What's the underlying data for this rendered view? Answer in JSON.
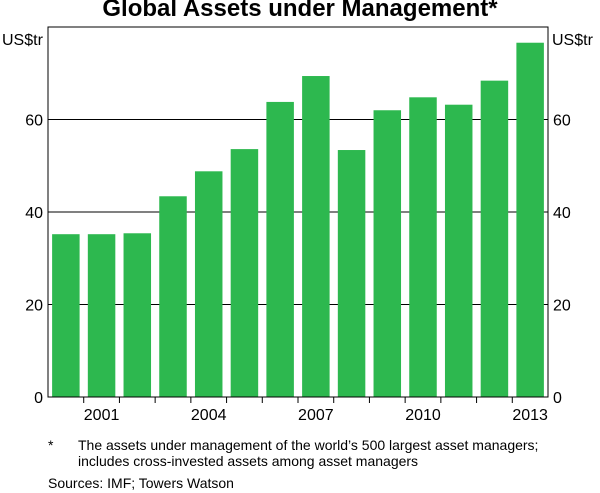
{
  "chart_data": {
    "type": "bar",
    "title": "Global Assets under Management*",
    "ylabel_left": "US$tr",
    "ylabel_right": "US$tr",
    "xlabel": "",
    "categories": [
      "2000",
      "2001",
      "2002",
      "2003",
      "2004",
      "2005",
      "2006",
      "2007",
      "2008",
      "2009",
      "2010",
      "2011",
      "2012",
      "2013"
    ],
    "values": [
      35.2,
      35.2,
      35.4,
      43.4,
      48.8,
      53.6,
      63.8,
      69.4,
      53.4,
      62.0,
      64.8,
      63.2,
      68.4,
      76.6
    ],
    "ylim": [
      0,
      80
    ],
    "yticks": [
      0,
      20,
      40,
      60
    ],
    "xtick_labels": [
      {
        "category": "2001",
        "label": "2001"
      },
      {
        "category": "2004",
        "label": "2004"
      },
      {
        "category": "2007",
        "label": "2007"
      },
      {
        "category": "2010",
        "label": "2010"
      },
      {
        "category": "2013",
        "label": "2013"
      }
    ],
    "bar_color": "#2db84f",
    "grid": true
  },
  "footnote": {
    "mark": "*",
    "text": "The assets under management of the world’s 500 largest asset managers; includes cross-invested assets among asset managers"
  },
  "sources": "Sources:   IMF; Towers Watson"
}
